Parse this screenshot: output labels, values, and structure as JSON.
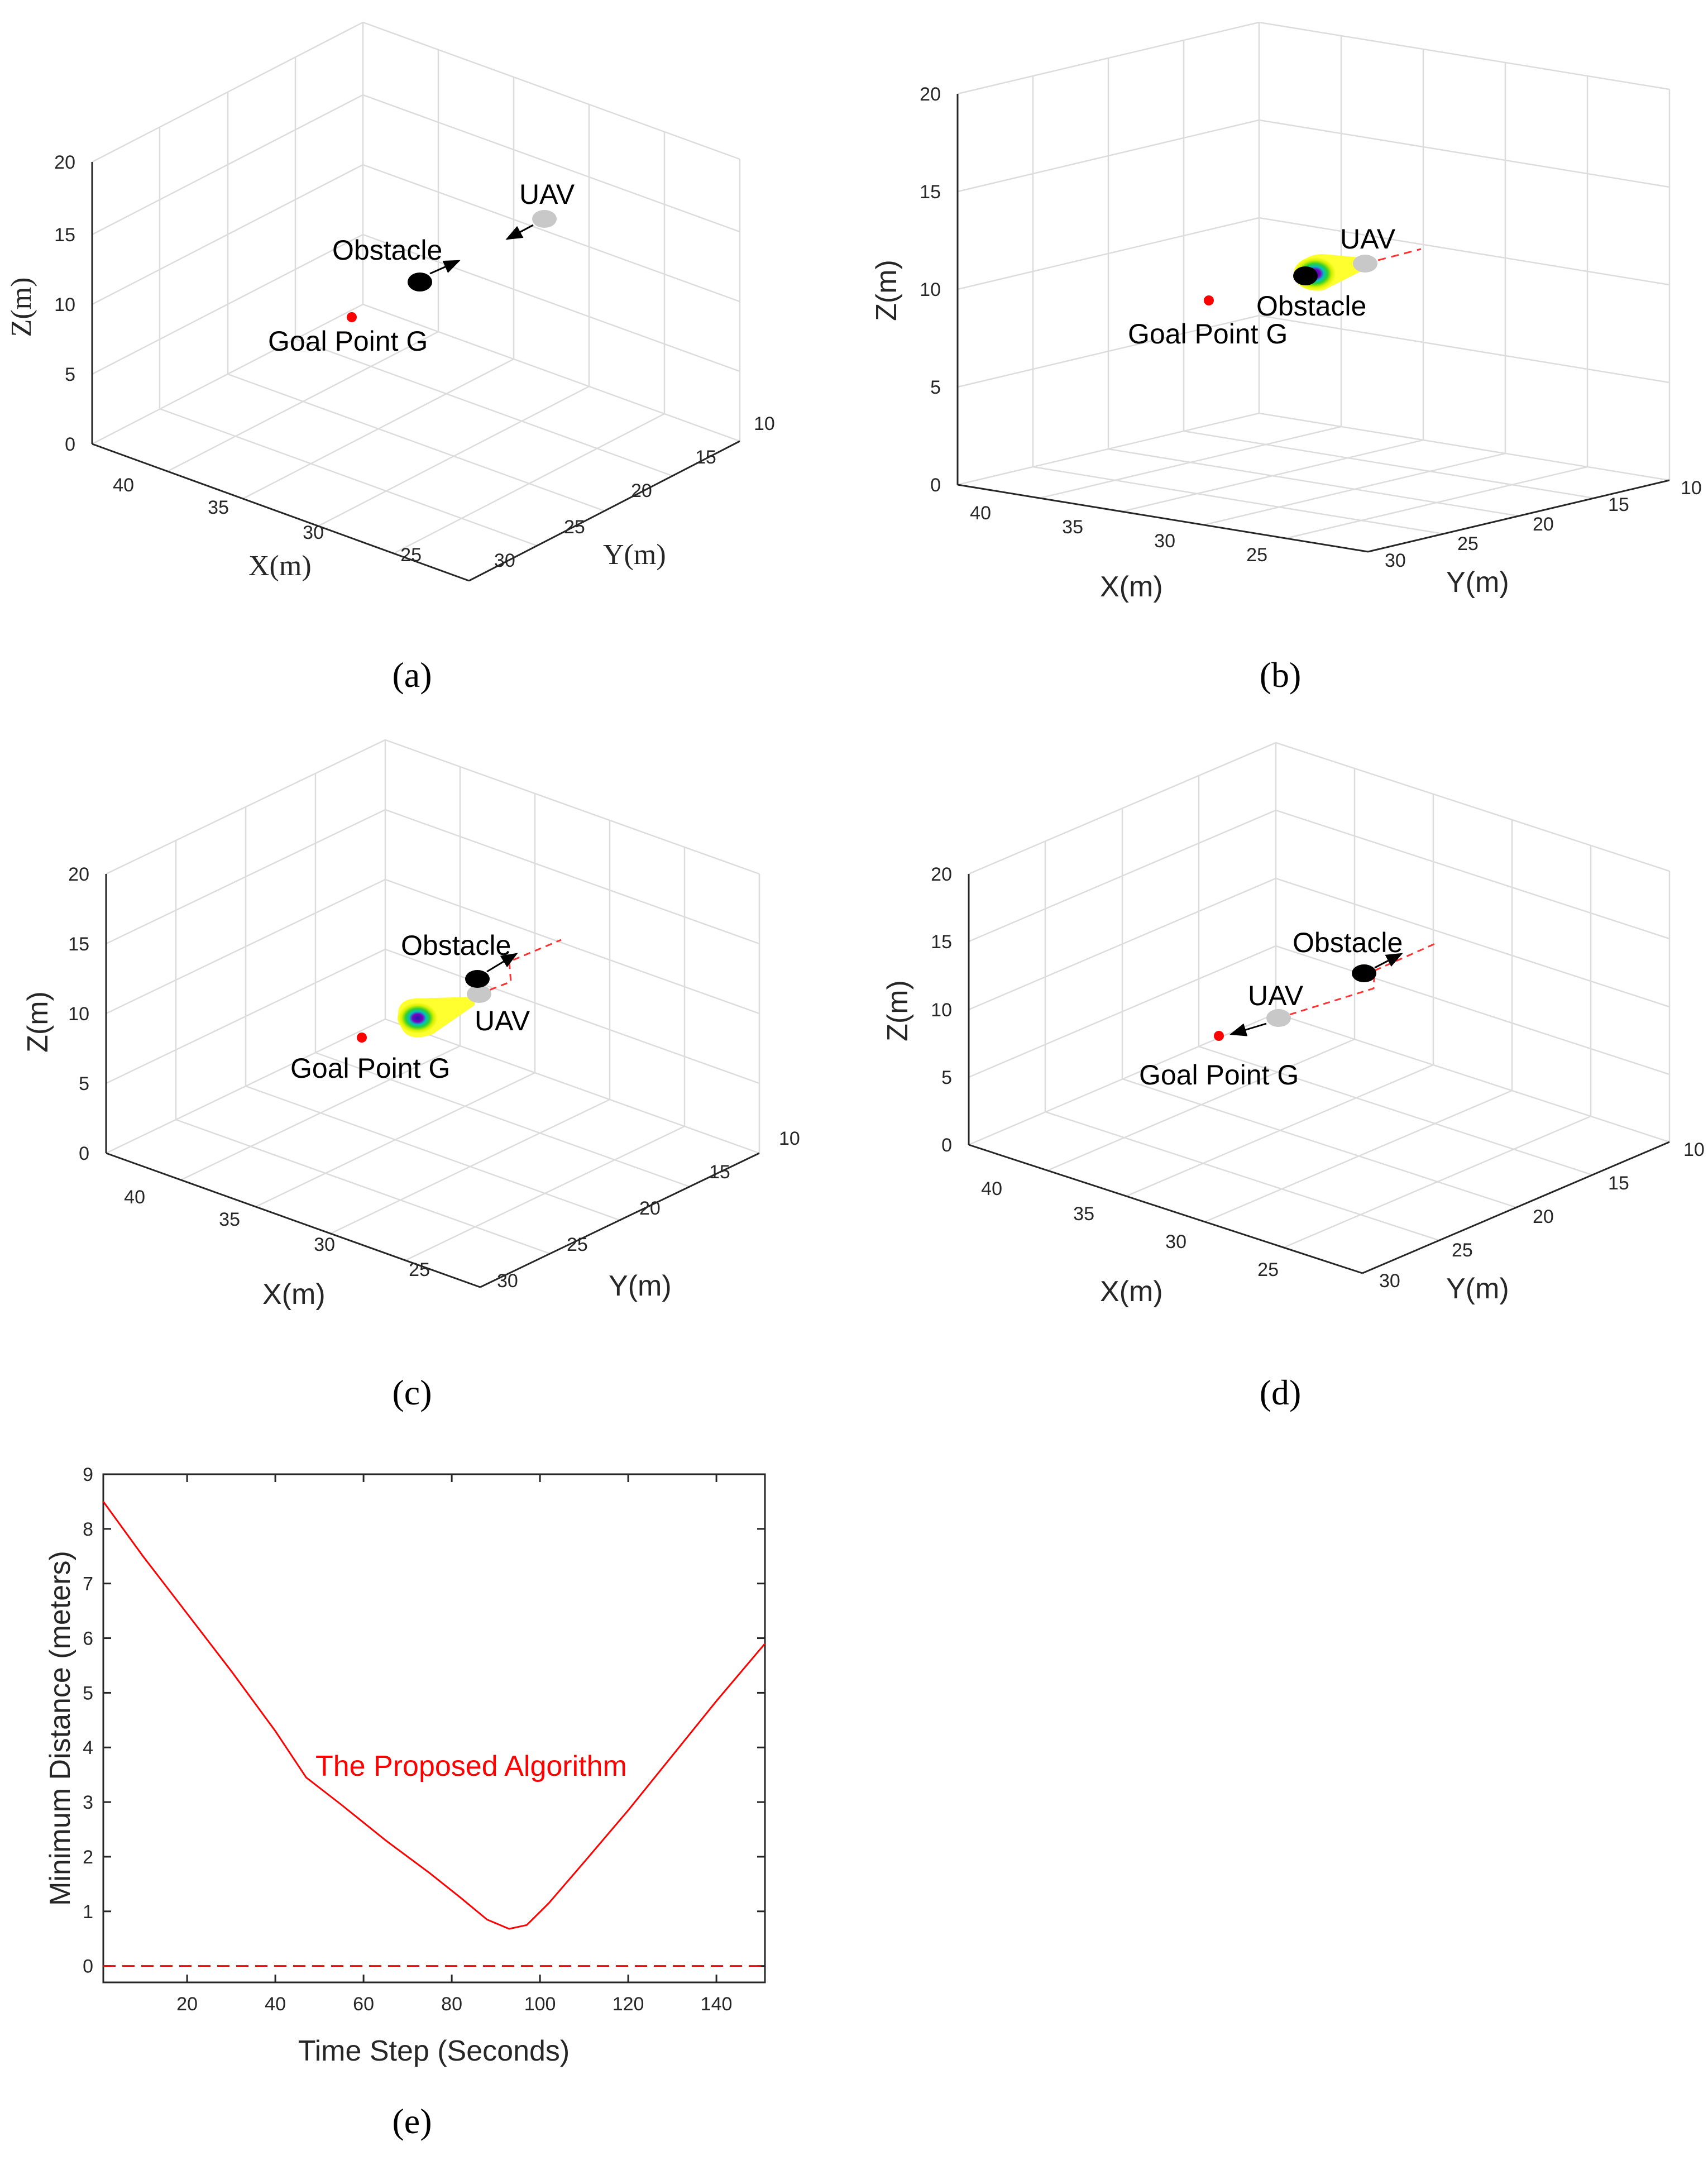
{
  "panels": [
    {
      "caption": "(a)",
      "axes": {
        "x_label": "X(m)",
        "y_label": "Y(m)",
        "z_label": "Z(m)",
        "x_ticks": [
          "40",
          "35",
          "30",
          "25"
        ],
        "y_ticks": [
          "10",
          "15",
          "20",
          "25",
          "30"
        ],
        "z_ticks": [
          "0",
          "5",
          "10",
          "15",
          "20"
        ]
      },
      "labels": {
        "uav": "UAV",
        "obstacle": "Obstacle",
        "goal": "Goal Point G"
      }
    },
    {
      "caption": "(b)",
      "axes": {
        "x_label": "X(m)",
        "y_label": "Y(m)",
        "z_label": "Z(m)",
        "x_ticks": [
          "40",
          "35",
          "30",
          "25"
        ],
        "y_ticks": [
          "10",
          "15",
          "20",
          "25",
          "30"
        ],
        "z_ticks": [
          "0",
          "5",
          "10",
          "15",
          "20"
        ]
      },
      "labels": {
        "uav": "UAV",
        "obstacle": "Obstacle",
        "goal": "Goal Point G"
      }
    },
    {
      "caption": "(c)",
      "axes": {
        "x_label": "X(m)",
        "y_label": "Y(m)",
        "z_label": "Z(m)",
        "x_ticks": [
          "40",
          "35",
          "30",
          "25"
        ],
        "y_ticks": [
          "10",
          "15",
          "20",
          "25",
          "30"
        ],
        "z_ticks": [
          "0",
          "5",
          "10",
          "15",
          "20"
        ]
      },
      "labels": {
        "uav": "UAV",
        "obstacle": "Obstacle",
        "goal": "Goal Point G"
      }
    },
    {
      "caption": "(d)",
      "axes": {
        "x_label": "X(m)",
        "y_label": "Y(m)",
        "z_label": "Z(m)",
        "x_ticks": [
          "40",
          "35",
          "30",
          "25"
        ],
        "y_ticks": [
          "10",
          "15",
          "20",
          "25",
          "30"
        ],
        "z_ticks": [
          "0",
          "5",
          "10",
          "15",
          "20"
        ]
      },
      "labels": {
        "uav": "UAV",
        "obstacle": "Obstacle",
        "goal": "Goal Point G"
      }
    }
  ],
  "chart_data": {
    "type": "line",
    "caption": "(e)",
    "xlabel": "Time Step (Seconds)",
    "ylabel": "Minimum Distance (meters)",
    "xlim": [
      1,
      151
    ],
    "ylim": [
      -0.3,
      9
    ],
    "x_ticks": [
      20,
      40,
      60,
      80,
      100,
      120,
      140
    ],
    "y_ticks": [
      0,
      1,
      2,
      3,
      4,
      5,
      6,
      7,
      8,
      9
    ],
    "annotation": "The Proposed Algorithm",
    "series": [
      {
        "name": "The Proposed Algorithm",
        "color": "#ff0000",
        "style": "solid",
        "x": [
          1,
          10,
          20,
          30,
          40,
          47,
          55,
          65,
          75,
          82,
          88,
          93,
          97,
          102,
          110,
          120,
          130,
          140,
          151
        ],
        "y": [
          8.5,
          7.5,
          6.45,
          5.4,
          4.3,
          3.45,
          2.95,
          2.3,
          1.7,
          1.25,
          0.85,
          0.68,
          0.75,
          1.15,
          1.9,
          2.85,
          3.85,
          4.85,
          5.9
        ]
      },
      {
        "name": "zero line",
        "color": "#ff0000",
        "style": "dashed",
        "x": [
          1,
          151
        ],
        "y": [
          0,
          0
        ]
      }
    ]
  }
}
